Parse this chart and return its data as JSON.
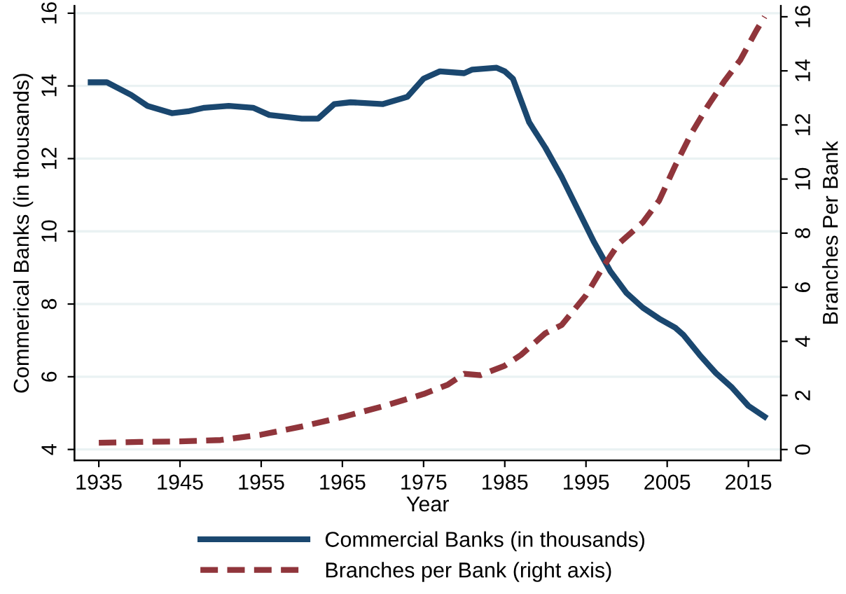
{
  "chart_data": {
    "type": "line",
    "xlabel": "Year",
    "ylabel": "Commerical Banks (in thousands)",
    "y2label": "Branches Per Bank",
    "xlim": [
      1932,
      2019
    ],
    "xticks": [
      1935,
      1945,
      1955,
      1965,
      1975,
      1985,
      1995,
      2005,
      2015
    ],
    "ylim": [
      3.7,
      16.2
    ],
    "yticks": [
      4,
      6,
      8,
      10,
      12,
      14,
      16
    ],
    "y2lim": [
      -0.4,
      16.4
    ],
    "y2ticks": [
      0,
      2,
      4,
      6,
      8,
      10,
      12,
      14,
      16
    ],
    "grid": "y",
    "legend": "bottom",
    "series": [
      {
        "name": "Commercial Banks (in thousands)",
        "color": "#1a476f",
        "line_style": "solid",
        "x": [
          1934,
          1936,
          1939,
          1941,
          1944,
          1946,
          1948,
          1951,
          1954,
          1956,
          1960,
          1962,
          1964,
          1966,
          1970,
          1973,
          1975,
          1977,
          1980,
          1981,
          1984,
          1985,
          1986,
          1988,
          1990,
          1992,
          1994,
          1996,
          1998,
          2000,
          2002,
          2004,
          2006,
          2007,
          2009,
          2011,
          2013,
          2015,
          2017
        ],
        "values": [
          14.1,
          14.1,
          13.75,
          13.45,
          13.25,
          13.3,
          13.4,
          13.45,
          13.4,
          13.2,
          13.1,
          13.1,
          13.5,
          13.55,
          13.5,
          13.7,
          14.2,
          14.4,
          14.35,
          14.45,
          14.5,
          14.4,
          14.2,
          13.0,
          12.3,
          11.5,
          10.6,
          9.7,
          8.9,
          8.3,
          7.9,
          7.6,
          7.35,
          7.15,
          6.6,
          6.1,
          5.7,
          5.2,
          4.9
        ]
      },
      {
        "name": "Branches per Bank (right axis)",
        "color": "#90353b",
        "line_style": "dashed",
        "axis": "y2",
        "x": [
          1935,
          1940,
          1945,
          1950,
          1955,
          1960,
          1965,
          1970,
          1975,
          1978,
          1980,
          1982,
          1985,
          1987,
          1990,
          1992,
          1995,
          1997,
          1999,
          2002,
          2004,
          2006,
          2008,
          2010,
          2012,
          2014,
          2016,
          2017
        ],
        "values": [
          0.25,
          0.28,
          0.3,
          0.35,
          0.55,
          0.85,
          1.2,
          1.6,
          2.05,
          2.4,
          2.8,
          2.75,
          3.1,
          3.5,
          4.3,
          4.6,
          5.7,
          6.7,
          7.6,
          8.4,
          9.2,
          10.5,
          11.7,
          12.7,
          13.6,
          14.4,
          15.5,
          16.0
        ]
      }
    ]
  }
}
